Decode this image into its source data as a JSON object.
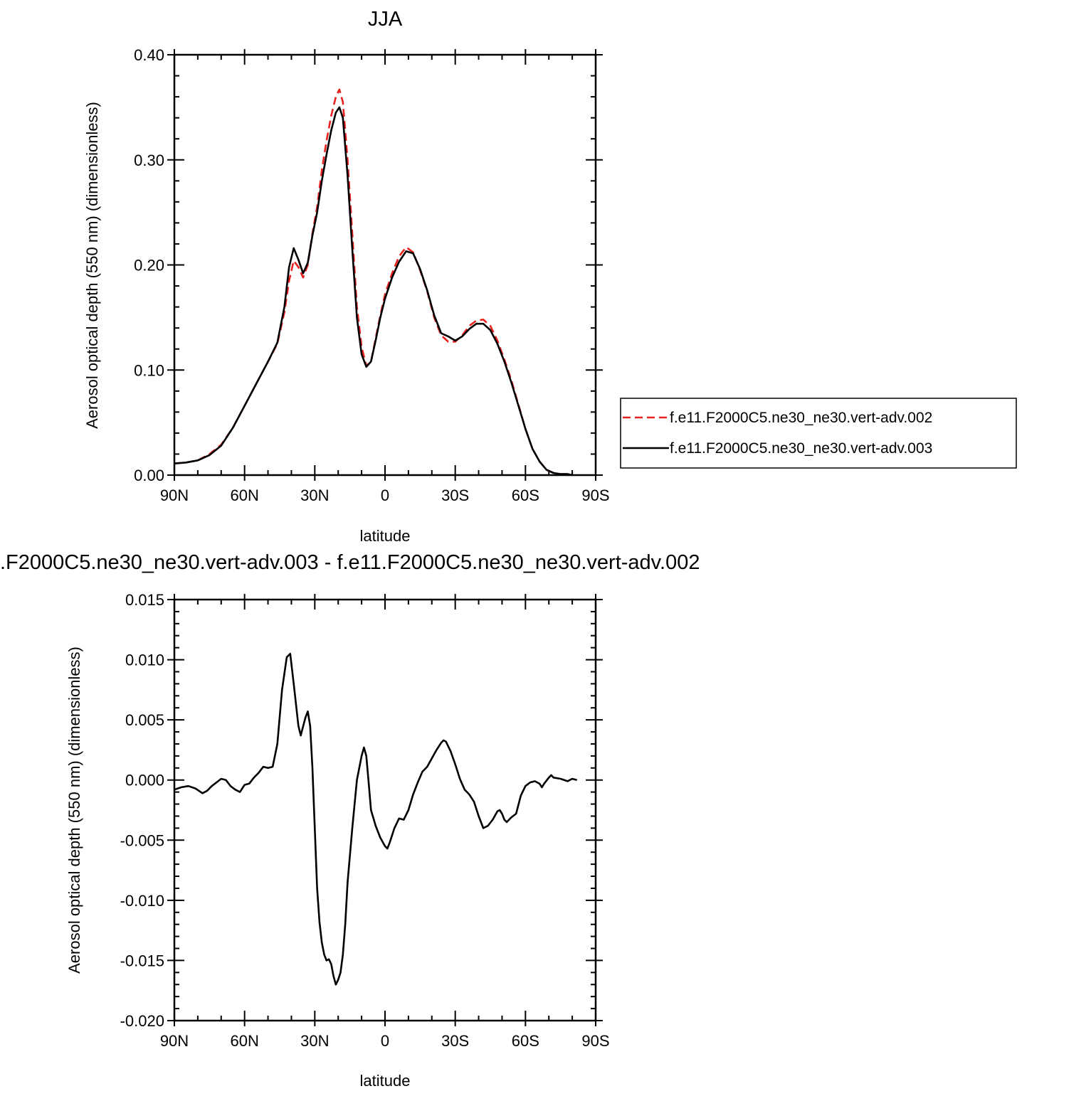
{
  "chart_data": [
    {
      "type": "line",
      "title": "JJA",
      "xlabel": "latitude",
      "ylabel": "Aerosol optical depth (550 nm) (dimensionless)",
      "xlim": [
        -90,
        90
      ],
      "ylim": [
        0.0,
        0.4
      ],
      "x_ticks": [
        -90,
        -60,
        -30,
        0,
        30,
        60,
        90
      ],
      "x_tick_labels": [
        "90N",
        "60N",
        "30N",
        "0",
        "30S",
        "60S",
        "90S"
      ],
      "y_ticks": [
        0.0,
        0.1,
        0.2,
        0.3,
        0.4
      ],
      "y_tick_labels": [
        "0.00",
        "0.10",
        "0.20",
        "0.30",
        "0.40"
      ],
      "grid": false,
      "legend_position": "right",
      "series": [
        {
          "name": "f.e11.F2000C5.ne30_ne30.vert-adv.002",
          "color": "#e8221f",
          "dash": "dashed",
          "points": [
            [
              -90,
              0.011
            ],
            [
              -85,
              0.012
            ],
            [
              -80,
              0.014
            ],
            [
              -75,
              0.02
            ],
            [
              -70,
              0.029
            ],
            [
              -65,
              0.045
            ],
            [
              -60,
              0.066
            ],
            [
              -55,
              0.087
            ],
            [
              -50,
              0.108
            ],
            [
              -46,
              0.125
            ],
            [
              -43,
              0.155
            ],
            [
              -41,
              0.185
            ],
            [
              -39,
              0.204
            ],
            [
              -37,
              0.198
            ],
            [
              -35,
              0.188
            ],
            [
              -33,
              0.2
            ],
            [
              -31,
              0.23
            ],
            [
              -29,
              0.255
            ],
            [
              -27,
              0.29
            ],
            [
              -25,
              0.318
            ],
            [
              -23,
              0.342
            ],
            [
              -21,
              0.36
            ],
            [
              -19.5,
              0.367
            ],
            [
              -18,
              0.355
            ],
            [
              -16,
              0.3
            ],
            [
              -14,
              0.23
            ],
            [
              -12,
              0.16
            ],
            [
              -10,
              0.122
            ],
            [
              -8,
              0.104
            ],
            [
              -6,
              0.108
            ],
            [
              -4,
              0.13
            ],
            [
              -2,
              0.152
            ],
            [
              0,
              0.172
            ],
            [
              3,
              0.192
            ],
            [
              6,
              0.208
            ],
            [
              9,
              0.217
            ],
            [
              12,
              0.212
            ],
            [
              15,
              0.195
            ],
            [
              18,
              0.175
            ],
            [
              21,
              0.15
            ],
            [
              24,
              0.133
            ],
            [
              27,
              0.127
            ],
            [
              30,
              0.127
            ],
            [
              33,
              0.133
            ],
            [
              36,
              0.142
            ],
            [
              39,
              0.147
            ],
            [
              42,
              0.148
            ],
            [
              45,
              0.142
            ],
            [
              48,
              0.128
            ],
            [
              51,
              0.11
            ],
            [
              54,
              0.09
            ],
            [
              57,
              0.067
            ],
            [
              60,
              0.044
            ],
            [
              63,
              0.025
            ],
            [
              66,
              0.013
            ],
            [
              69,
              0.005
            ],
            [
              72,
              0.002
            ],
            [
              75,
              0.001
            ],
            [
              78,
              0.001
            ],
            [
              80,
              0.0
            ]
          ]
        },
        {
          "name": "f.e11.F2000C5.ne30_ne30.vert-adv.003",
          "color": "#000000",
          "dash": "solid",
          "points": [
            [
              -90,
              0.011
            ],
            [
              -85,
              0.012
            ],
            [
              -80,
              0.014
            ],
            [
              -75,
              0.019
            ],
            [
              -70,
              0.028
            ],
            [
              -65,
              0.045
            ],
            [
              -60,
              0.066
            ],
            [
              -55,
              0.087
            ],
            [
              -50,
              0.108
            ],
            [
              -46,
              0.126
            ],
            [
              -43,
              0.16
            ],
            [
              -41,
              0.198
            ],
            [
              -39,
              0.216
            ],
            [
              -37,
              0.205
            ],
            [
              -35,
              0.192
            ],
            [
              -33,
              0.202
            ],
            [
              -31,
              0.228
            ],
            [
              -29,
              0.25
            ],
            [
              -27,
              0.28
            ],
            [
              -25,
              0.305
            ],
            [
              -23,
              0.328
            ],
            [
              -21,
              0.345
            ],
            [
              -19.5,
              0.35
            ],
            [
              -18,
              0.34
            ],
            [
              -16,
              0.285
            ],
            [
              -14,
              0.215
            ],
            [
              -12,
              0.15
            ],
            [
              -10,
              0.115
            ],
            [
              -8,
              0.103
            ],
            [
              -6,
              0.108
            ],
            [
              -4,
              0.128
            ],
            [
              -2,
              0.15
            ],
            [
              0,
              0.168
            ],
            [
              3,
              0.188
            ],
            [
              6,
              0.203
            ],
            [
              9,
              0.213
            ],
            [
              12,
              0.211
            ],
            [
              15,
              0.196
            ],
            [
              18,
              0.176
            ],
            [
              21,
              0.152
            ],
            [
              24,
              0.135
            ],
            [
              27,
              0.132
            ],
            [
              30,
              0.128
            ],
            [
              33,
              0.132
            ],
            [
              36,
              0.139
            ],
            [
              39,
              0.144
            ],
            [
              42,
              0.144
            ],
            [
              45,
              0.138
            ],
            [
              48,
              0.125
            ],
            [
              51,
              0.108
            ],
            [
              54,
              0.088
            ],
            [
              57,
              0.066
            ],
            [
              60,
              0.044
            ],
            [
              63,
              0.025
            ],
            [
              66,
              0.013
            ],
            [
              69,
              0.005
            ],
            [
              72,
              0.002
            ],
            [
              75,
              0.001
            ],
            [
              78,
              0.001
            ],
            [
              80,
              0.0
            ]
          ]
        }
      ]
    },
    {
      "type": "line",
      "title": ".F2000C5.ne30_ne30.vert-adv.003 - f.e11.F2000C5.ne30_ne30.vert-adv.002",
      "xlabel": "latitude",
      "ylabel": "Aerosol optical depth (550 nm) (dimensionless)",
      "xlim": [
        -90,
        90
      ],
      "ylim": [
        -0.02,
        0.015
      ],
      "x_ticks": [
        -90,
        -60,
        -30,
        0,
        30,
        60,
        90
      ],
      "x_tick_labels": [
        "90N",
        "60N",
        "30N",
        "0",
        "30S",
        "60S",
        "90S"
      ],
      "y_ticks": [
        -0.02,
        -0.015,
        -0.01,
        -0.005,
        0.0,
        0.005,
        0.01,
        0.015
      ],
      "y_tick_labels": [
        "-0.020",
        "-0.015",
        "-0.010",
        "-0.005",
        "0.000",
        "0.005",
        "0.010",
        "0.015"
      ],
      "grid": false,
      "series": [
        {
          "color": "#000000",
          "dash": "solid",
          "points": [
            [
              -90,
              -0.0008
            ],
            [
              -87,
              -0.0006
            ],
            [
              -84,
              -0.0005
            ],
            [
              -81,
              -0.0007
            ],
            [
              -78,
              -0.0011
            ],
            [
              -76,
              -0.0009
            ],
            [
              -74,
              -0.0005
            ],
            [
              -72,
              -0.0002
            ],
            [
              -70,
              0.0001
            ],
            [
              -68,
              0.0
            ],
            [
              -66,
              -0.0005
            ],
            [
              -64,
              -0.0008
            ],
            [
              -62,
              -0.001
            ],
            [
              -60,
              -0.0004
            ],
            [
              -58,
              -0.0003
            ],
            [
              -56,
              0.0002
            ],
            [
              -54,
              0.0006
            ],
            [
              -52,
              0.0011
            ],
            [
              -50,
              0.001
            ],
            [
              -48,
              0.0011
            ],
            [
              -46,
              0.003
            ],
            [
              -44,
              0.0075
            ],
            [
              -42,
              0.0102
            ],
            [
              -40.5,
              0.0105
            ],
            [
              -39,
              0.008
            ],
            [
              -37,
              0.0045
            ],
            [
              -36,
              0.0037
            ],
            [
              -34,
              0.0052
            ],
            [
              -33,
              0.0057
            ],
            [
              -32,
              0.0045
            ],
            [
              -31,
              0.001
            ],
            [
              -30,
              -0.004
            ],
            [
              -29,
              -0.009
            ],
            [
              -28,
              -0.0118
            ],
            [
              -27,
              -0.0135
            ],
            [
              -26,
              -0.0145
            ],
            [
              -25,
              -0.015
            ],
            [
              -24,
              -0.0149
            ],
            [
              -23,
              -0.0153
            ],
            [
              -22,
              -0.0163
            ],
            [
              -21,
              -0.017
            ],
            [
              -20,
              -0.0166
            ],
            [
              -19,
              -0.016
            ],
            [
              -18,
              -0.0145
            ],
            [
              -17,
              -0.012
            ],
            [
              -16,
              -0.0085
            ],
            [
              -14,
              -0.004
            ],
            [
              -12,
              0.0
            ],
            [
              -10,
              0.002
            ],
            [
              -9,
              0.0027
            ],
            [
              -8,
              0.002
            ],
            [
              -7,
              -0.0002
            ],
            [
              -6,
              -0.0025
            ],
            [
              -4,
              -0.0038
            ],
            [
              -2,
              -0.0048
            ],
            [
              0,
              -0.0055
            ],
            [
              1,
              -0.0057
            ],
            [
              2,
              -0.0052
            ],
            [
              4,
              -0.004
            ],
            [
              6,
              -0.0032
            ],
            [
              8,
              -0.0033
            ],
            [
              10,
              -0.0025
            ],
            [
              12,
              -0.0012
            ],
            [
              14,
              -0.0002
            ],
            [
              16,
              0.0007
            ],
            [
              18,
              0.0011
            ],
            [
              20,
              0.0018
            ],
            [
              22,
              0.0025
            ],
            [
              24,
              0.0031
            ],
            [
              25,
              0.0033
            ],
            [
              26,
              0.0032
            ],
            [
              28,
              0.0024
            ],
            [
              30,
              0.0013
            ],
            [
              32,
              0.0001
            ],
            [
              34,
              -0.0008
            ],
            [
              36,
              -0.0012
            ],
            [
              38,
              -0.0018
            ],
            [
              40,
              -0.003
            ],
            [
              42,
              -0.004
            ],
            [
              44,
              -0.0038
            ],
            [
              46,
              -0.0033
            ],
            [
              48,
              -0.0026
            ],
            [
              49,
              -0.0025
            ],
            [
              50,
              -0.0028
            ],
            [
              51,
              -0.0033
            ],
            [
              52,
              -0.0035
            ],
            [
              54,
              -0.0031
            ],
            [
              56,
              -0.0028
            ],
            [
              58,
              -0.0013
            ],
            [
              60,
              -0.0005
            ],
            [
              62,
              -0.0002
            ],
            [
              64,
              -0.0001
            ],
            [
              66,
              -0.0003
            ],
            [
              67,
              -0.0006
            ],
            [
              68,
              -0.0003
            ],
            [
              70,
              0.0002
            ],
            [
              71,
              0.0004
            ],
            [
              72,
              0.0002
            ],
            [
              75,
              0.0001
            ],
            [
              78,
              -0.0001
            ],
            [
              80,
              0.0001
            ],
            [
              82,
              0.0
            ]
          ]
        }
      ]
    }
  ]
}
